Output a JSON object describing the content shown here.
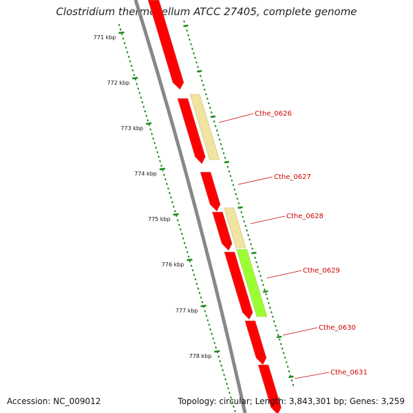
{
  "title": "Clostridium thermocellum ATCC 27405, complete genome",
  "footer": {
    "accession": "Accession: NC_009012",
    "topology": "Topology: circular; Length: 3,843,301 bp; Genes: 3,259"
  },
  "scale": {
    "unit": "kbp",
    "ticks": [
      "771 kbp",
      "772 kbp",
      "773 kbp",
      "774 kbp",
      "775 kbp",
      "776 kbp",
      "777 kbp",
      "778 kbp"
    ]
  },
  "genes": [
    {
      "label": "Cthe_0626",
      "color": "#f0e4a0"
    },
    {
      "label": "Cthe_0627",
      "color": "#ff0000"
    },
    {
      "label": "Cthe_0628",
      "color": "#f0e4a0"
    },
    {
      "label": "Cthe_0629",
      "color": "#99ff33"
    },
    {
      "label": "Cthe_0630",
      "color": "#ff0000"
    },
    {
      "label": "Cthe_0631",
      "color": "#ff0000"
    }
  ],
  "colors": {
    "backbone": "#888888",
    "tick": "#1a8a1a",
    "cds": "#ff0000",
    "label": "#cc0000"
  }
}
